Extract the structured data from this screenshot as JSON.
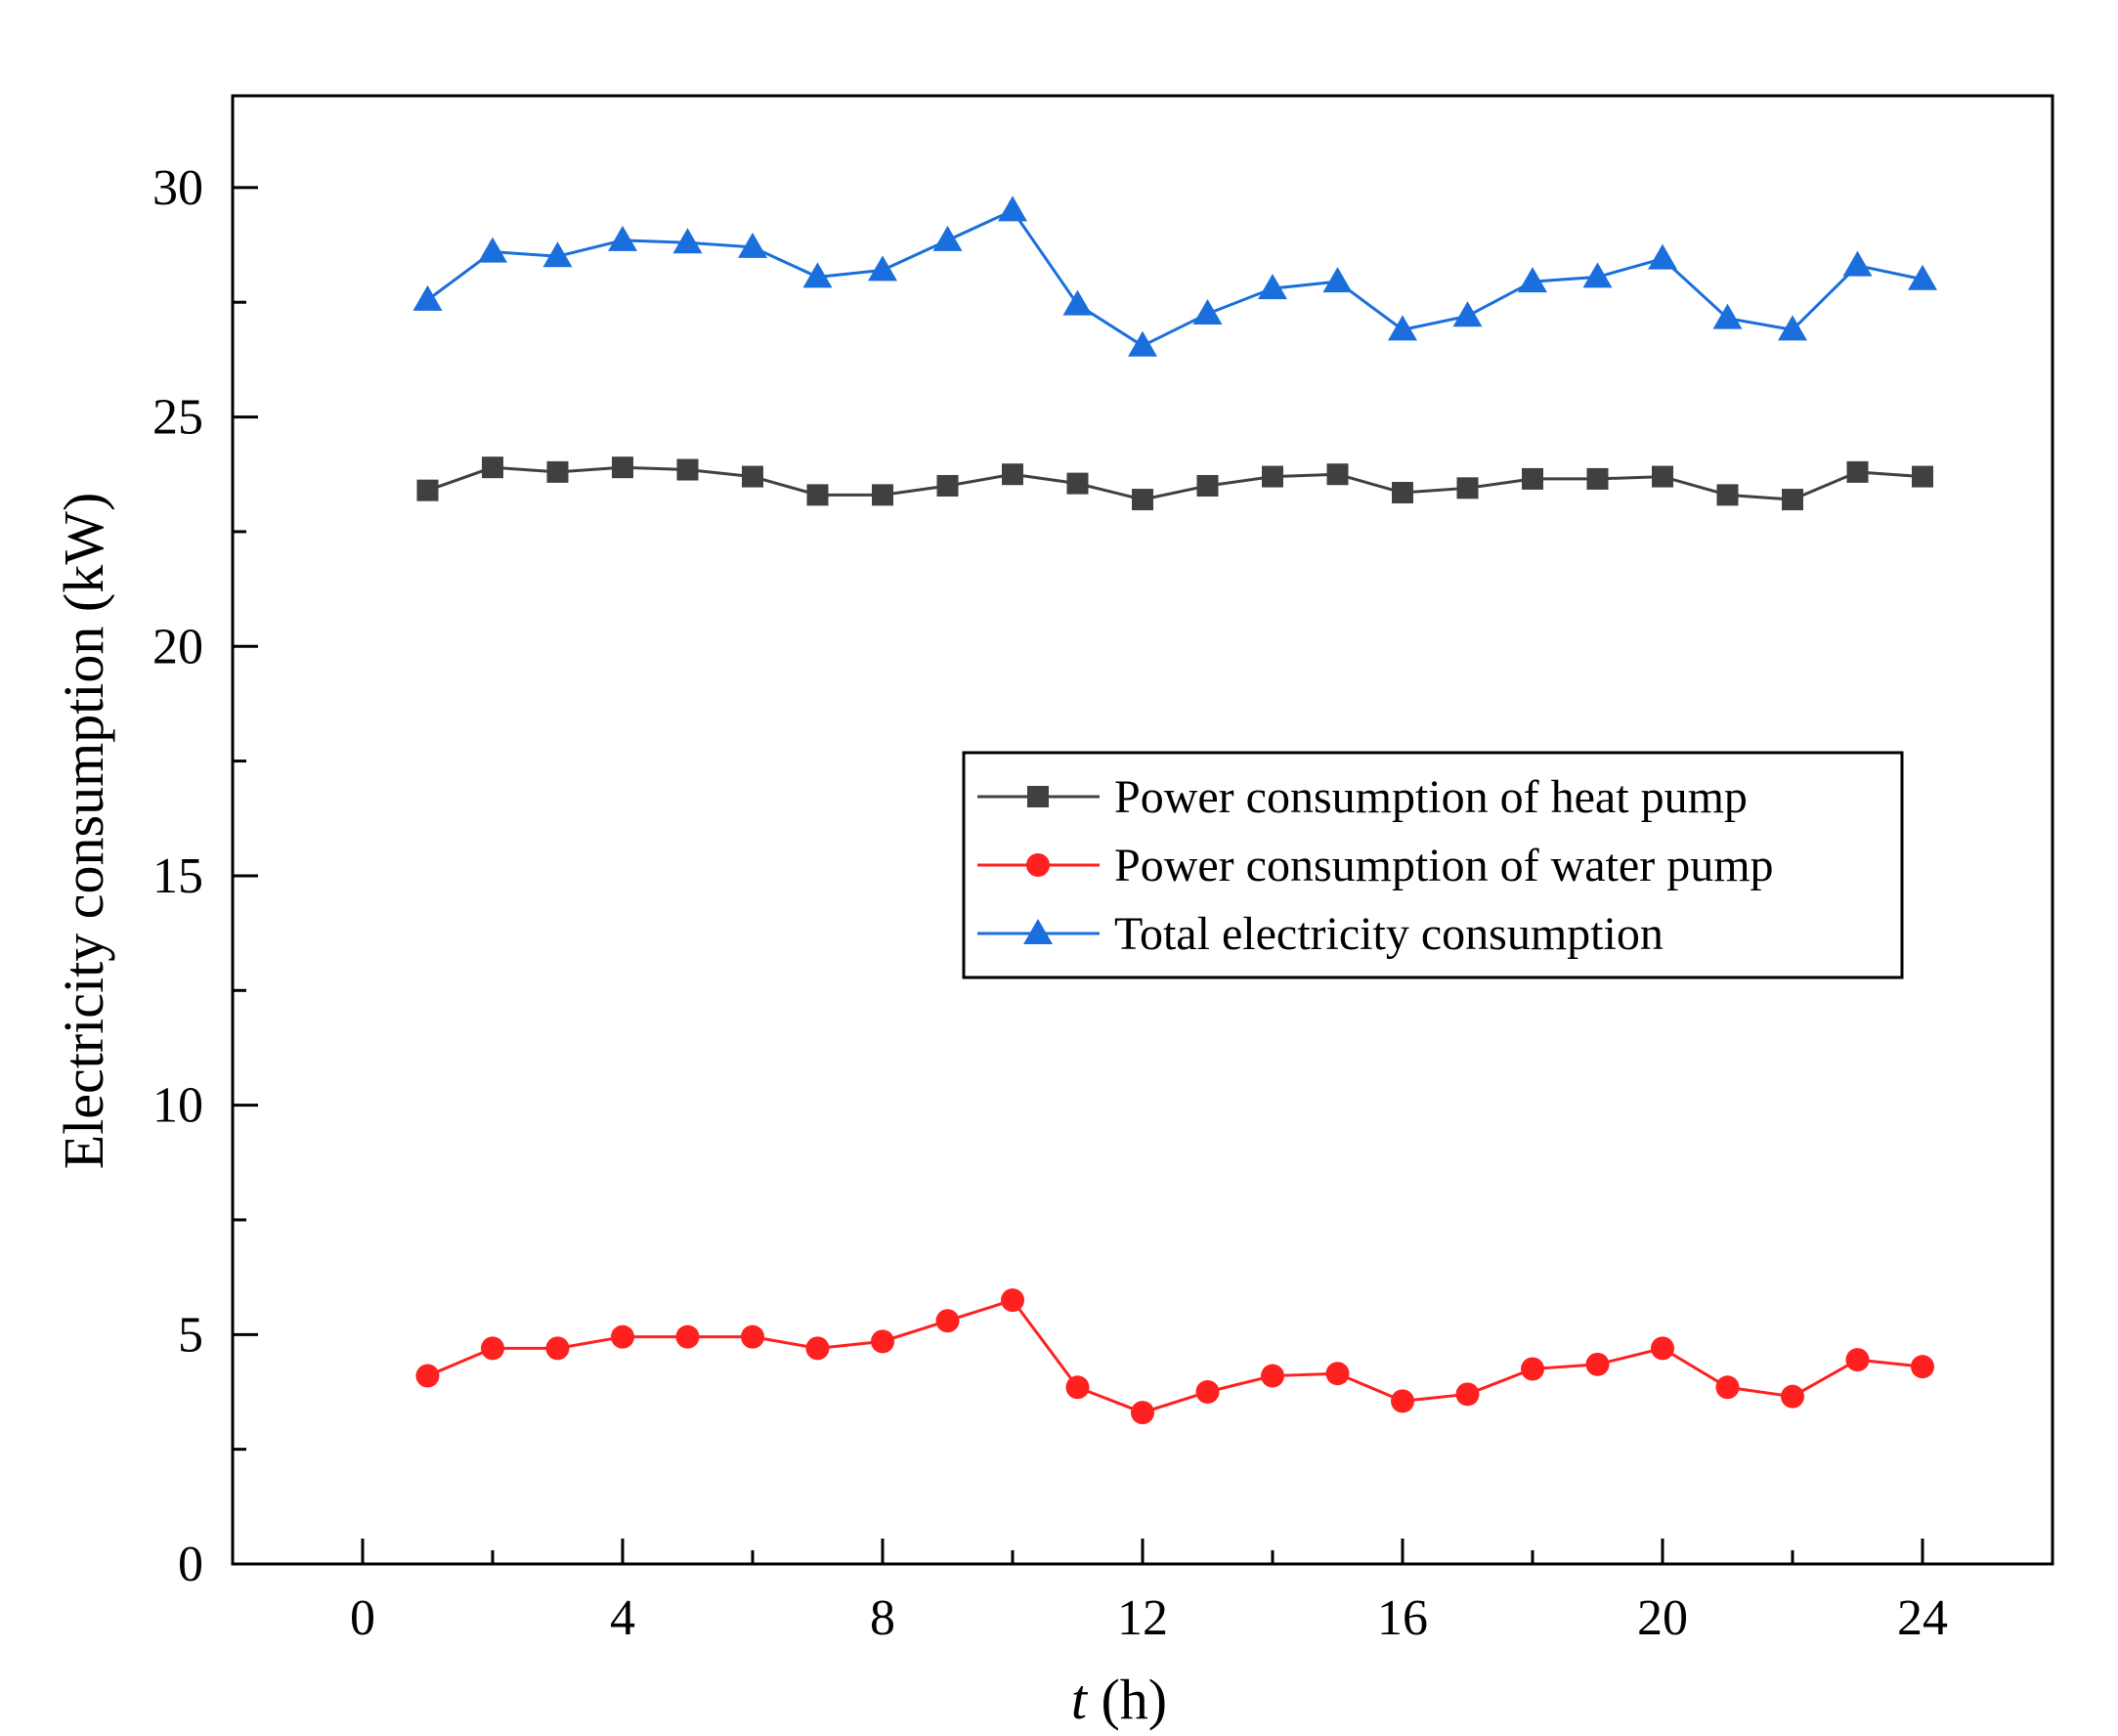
{
  "chart_data": {
    "type": "line",
    "title": "",
    "xlabel": {
      "var": "t",
      "unit": " (h)"
    },
    "ylabel": "Electricity consumption (kW)",
    "xlim": [
      -2,
      26
    ],
    "ylim": [
      0,
      32
    ],
    "x_ticks": [
      0,
      4,
      8,
      12,
      16,
      20,
      24
    ],
    "x_tick_labels": [
      "0",
      "4",
      "8",
      "12",
      "16",
      "20",
      "24"
    ],
    "x_minor_ticks": [
      2,
      6,
      10,
      14,
      18,
      22,
      26
    ],
    "y_ticks": [
      0,
      5,
      10,
      15,
      20,
      25,
      30
    ],
    "y_tick_labels": [
      "0",
      "5",
      "10",
      "15",
      "20",
      "25",
      "30"
    ],
    "y_minor_ticks": [
      2.5,
      7.5,
      12.5,
      17.5,
      22.5,
      27.5
    ],
    "grid": false,
    "legend_position": "center-right",
    "x": [
      1,
      2,
      3,
      4,
      5,
      6,
      7,
      8,
      9,
      10,
      11,
      12,
      13,
      14,
      15,
      16,
      17,
      18,
      19,
      20,
      21,
      22,
      23,
      24
    ],
    "series": [
      {
        "name": "Power consumption of heat pump",
        "color": "#404040",
        "marker": "square",
        "values": [
          23.4,
          23.9,
          23.8,
          23.9,
          23.85,
          23.7,
          23.3,
          23.3,
          23.5,
          23.75,
          23.55,
          23.2,
          23.5,
          23.7,
          23.75,
          23.35,
          23.45,
          23.65,
          23.65,
          23.7,
          23.3,
          23.2,
          23.8,
          23.7
        ]
      },
      {
        "name": "Power consumption of water pump",
        "color": "#ff2020",
        "marker": "circle",
        "values": [
          4.1,
          4.7,
          4.7,
          4.95,
          4.95,
          4.95,
          4.7,
          4.85,
          5.3,
          5.75,
          3.85,
          3.3,
          3.75,
          4.1,
          4.15,
          3.55,
          3.7,
          4.25,
          4.35,
          4.7,
          3.85,
          3.65,
          4.45,
          4.3
        ]
      },
      {
        "name": "Total electricity consumption",
        "color": "#1a6fdc",
        "marker": "triangle",
        "values": [
          27.55,
          28.6,
          28.5,
          28.85,
          28.8,
          28.7,
          28.05,
          28.2,
          28.85,
          29.5,
          27.45,
          26.55,
          27.25,
          27.8,
          27.95,
          26.9,
          27.2,
          27.95,
          28.05,
          28.45,
          27.15,
          26.9,
          28.3,
          28.0
        ]
      }
    ]
  }
}
